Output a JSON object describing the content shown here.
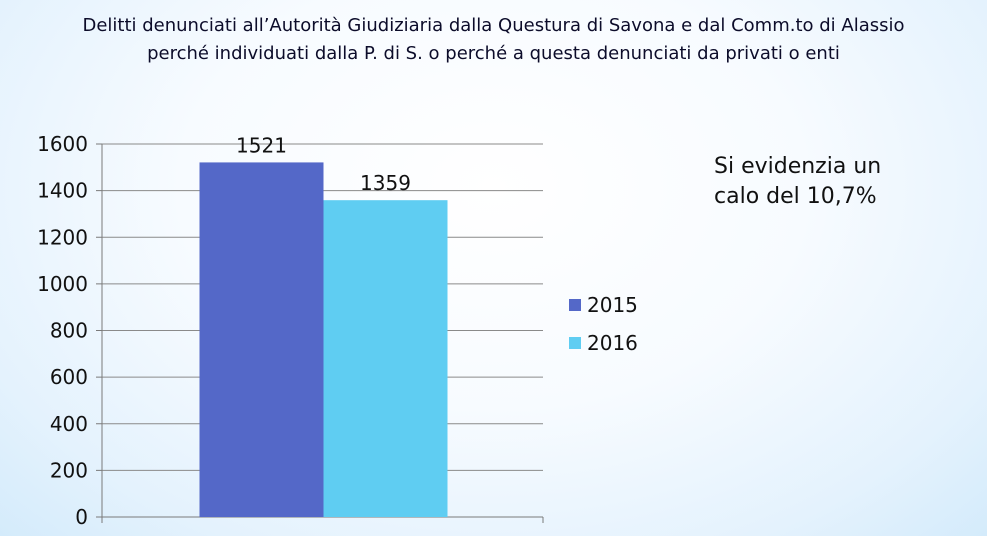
{
  "title": {
    "line1": "Delitti denunciati all’Autorità Giudiziaria dalla Questura di Savona e dal Comm.to di Alassio",
    "line2": "perché individuati dalla P. di S. o perché a questa denunciati da privati o enti"
  },
  "note": {
    "line1": "Si evidenzia un",
    "line2": "calo del 10,7%"
  },
  "chart_data": {
    "type": "bar",
    "title": "Delitti denunciati all’Autorità Giudiziaria dalla Questura di Savona e dal Comm.to di Alassio perché individuati dalla P. di S. o perché a questa denunciati da privati o enti",
    "xlabel": "",
    "ylabel": "",
    "ylim": [
      0,
      1600
    ],
    "yticks": [
      0,
      200,
      400,
      600,
      800,
      1000,
      1200,
      1400,
      1600
    ],
    "grid": true,
    "legend_position": "right",
    "series": [
      {
        "name": "2015",
        "values": [
          1521
        ],
        "color": "#5468c8"
      },
      {
        "name": "2016",
        "values": [
          1359
        ],
        "color": "#5fcdf2"
      }
    ]
  }
}
